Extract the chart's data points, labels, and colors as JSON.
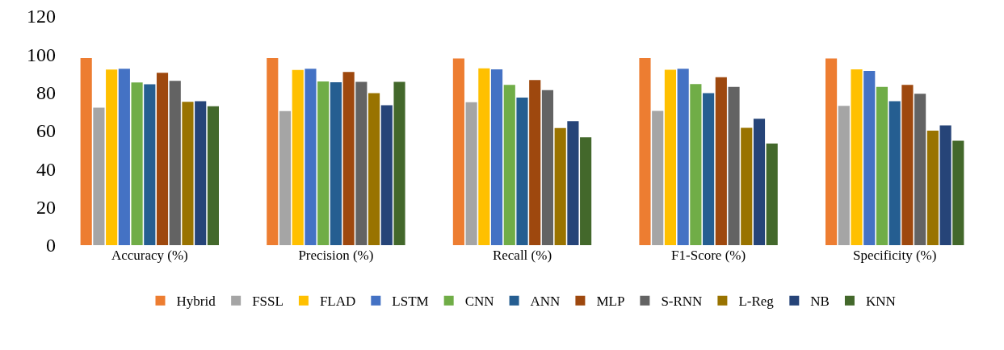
{
  "chart_data": {
    "type": "bar",
    "categories": [
      "Accuracy (%)",
      "Precision (%)",
      "Recall (%)",
      "F1-Score (%)",
      "Specificity (%)"
    ],
    "series": [
      {
        "name": "Hybrid",
        "color": "#ed7d31",
        "values": [
          98,
          98,
          97.8,
          98,
          97.8
        ]
      },
      {
        "name": "FSSL",
        "color": "#a5a5a5",
        "values": [
          72,
          70.2,
          74.9,
          70.3,
          73
        ]
      },
      {
        "name": "FLAD",
        "color": "#ffc000",
        "values": [
          92,
          91.8,
          92.6,
          91.9,
          92.1
        ]
      },
      {
        "name": "LSTM",
        "color": "#4472c4",
        "values": [
          92.4,
          92.4,
          92.1,
          92.4,
          91.3
        ]
      },
      {
        "name": "CNN",
        "color": "#70ad47",
        "values": [
          85.2,
          85.8,
          84,
          84.4,
          82.9
        ]
      },
      {
        "name": "ANN",
        "color": "#255e91",
        "values": [
          84.3,
          85.4,
          77.3,
          79.6,
          75.4
        ]
      },
      {
        "name": "MLP",
        "color": "#9e480e",
        "values": [
          90.3,
          90.7,
          86.5,
          88,
          84
        ]
      },
      {
        "name": "S-RNN",
        "color": "#636363",
        "values": [
          86.1,
          85.6,
          81.2,
          82.9,
          79.3
        ]
      },
      {
        "name": "L-Reg",
        "color": "#997300",
        "values": [
          75.1,
          79.7,
          61.4,
          61.5,
          60
        ]
      },
      {
        "name": "NB",
        "color": "#264478",
        "values": [
          75.4,
          73.3,
          65,
          66.2,
          62.7
        ]
      },
      {
        "name": "KNN",
        "color": "#43682b",
        "values": [
          72.8,
          85.6,
          56.5,
          53.2,
          54.7
        ]
      }
    ],
    "ylim": [
      0,
      120
    ],
    "yticks": [
      0,
      20,
      40,
      60,
      80,
      100,
      120
    ],
    "grid": false,
    "legend": "bottom"
  }
}
